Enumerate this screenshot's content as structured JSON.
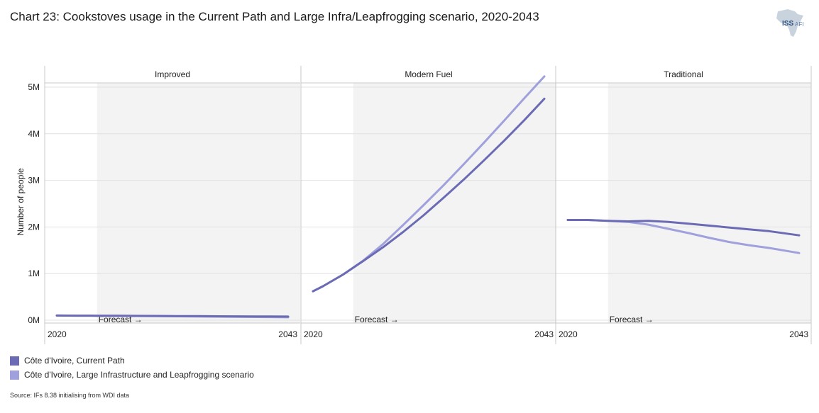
{
  "title": "Chart 23: Cookstoves usage in the Current Path and Large Infra/Leapfrogging scenario, 2020-2043",
  "logo": {
    "main": "ISS",
    "sub": "AFI"
  },
  "source": "Source: IFs 8.38 initialising from WDI data",
  "colors": {
    "current_path": "#6b6bb5",
    "scenario": "#a0a0dc",
    "forecast_bg": "#f3f3f3",
    "grid": "#e2e2e2"
  },
  "chart_data": {
    "type": "line",
    "ylabel": "Number of people",
    "yticks": [
      "0M",
      "1M",
      "2M",
      "3M",
      "4M",
      "5M"
    ],
    "ylim": [
      0,
      5000000
    ],
    "xlim": [
      2020,
      2043
    ],
    "xtick_labels": [
      "2020",
      "2043"
    ],
    "forecast_label": "Forecast →",
    "forecast_start": 2024,
    "panels": [
      {
        "name": "Improved",
        "series": [
          {
            "name": "Côte d'Ivoire, Current Path",
            "x": [
              2020,
              2022,
              2024,
              2026,
              2028,
              2030,
              2032,
              2034,
              2036,
              2038,
              2040,
              2043
            ],
            "y": [
              100000,
              98000,
              95000,
              95000,
              93000,
              91000,
              88000,
              86000,
              84000,
              82000,
              80000,
              77000
            ]
          },
          {
            "name": "Côte d'Ivoire, Large Infrastructure and Leapfrogging scenario",
            "x": [
              2020,
              2022,
              2024,
              2026,
              2028,
              2030,
              2032,
              2034,
              2036,
              2038,
              2040,
              2043
            ],
            "y": [
              100000,
              98000,
              95000,
              94000,
              91000,
              88000,
              84000,
              80000,
              76000,
              72000,
              68000,
              62000
            ]
          }
        ]
      },
      {
        "name": "Modern Fuel",
        "series": [
          {
            "name": "Côte d'Ivoire, Current Path",
            "x": [
              2020,
              2021,
              2023,
              2025,
              2027,
              2029,
              2031,
              2033,
              2035,
              2037,
              2039,
              2041,
              2043
            ],
            "y": [
              620000,
              730000,
              980000,
              1270000,
              1570000,
              1900000,
              2250000,
              2630000,
              3020000,
              3430000,
              3850000,
              4290000,
              4750000
            ]
          },
          {
            "name": "Côte d'Ivoire, Large Infrastructure and Leapfrogging scenario",
            "x": [
              2020,
              2021,
              2023,
              2025,
              2027,
              2029,
              2031,
              2033,
              2035,
              2037,
              2039,
              2041,
              2043
            ],
            "y": [
              620000,
              730000,
              980000,
              1280000,
              1640000,
              2050000,
              2470000,
              2900000,
              3350000,
              3810000,
              4280000,
              4760000,
              5230000
            ]
          }
        ]
      },
      {
        "name": "Traditional",
        "series": [
          {
            "name": "Côte d'Ivoire, Current Path",
            "x": [
              2020,
              2022,
              2024,
              2026,
              2028,
              2030,
              2032,
              2034,
              2036,
              2038,
              2040,
              2043
            ],
            "y": [
              2150000,
              2150000,
              2130000,
              2120000,
              2130000,
              2110000,
              2070000,
              2030000,
              1990000,
              1950000,
              1910000,
              1820000
            ]
          },
          {
            "name": "Côte d'Ivoire, Large Infrastructure and Leapfrogging scenario",
            "x": [
              2020,
              2022,
              2024,
              2026,
              2028,
              2030,
              2032,
              2034,
              2036,
              2038,
              2040,
              2043
            ],
            "y": [
              2150000,
              2150000,
              2130000,
              2110000,
              2050000,
              1960000,
              1870000,
              1770000,
              1680000,
              1610000,
              1550000,
              1440000
            ]
          }
        ]
      }
    ]
  },
  "legend": [
    {
      "label": "Côte d'Ivoire, Current Path",
      "color": "#6b6bb5"
    },
    {
      "label": "Côte d'Ivoire, Large Infrastructure and Leapfrogging scenario",
      "color": "#a0a0dc"
    }
  ]
}
